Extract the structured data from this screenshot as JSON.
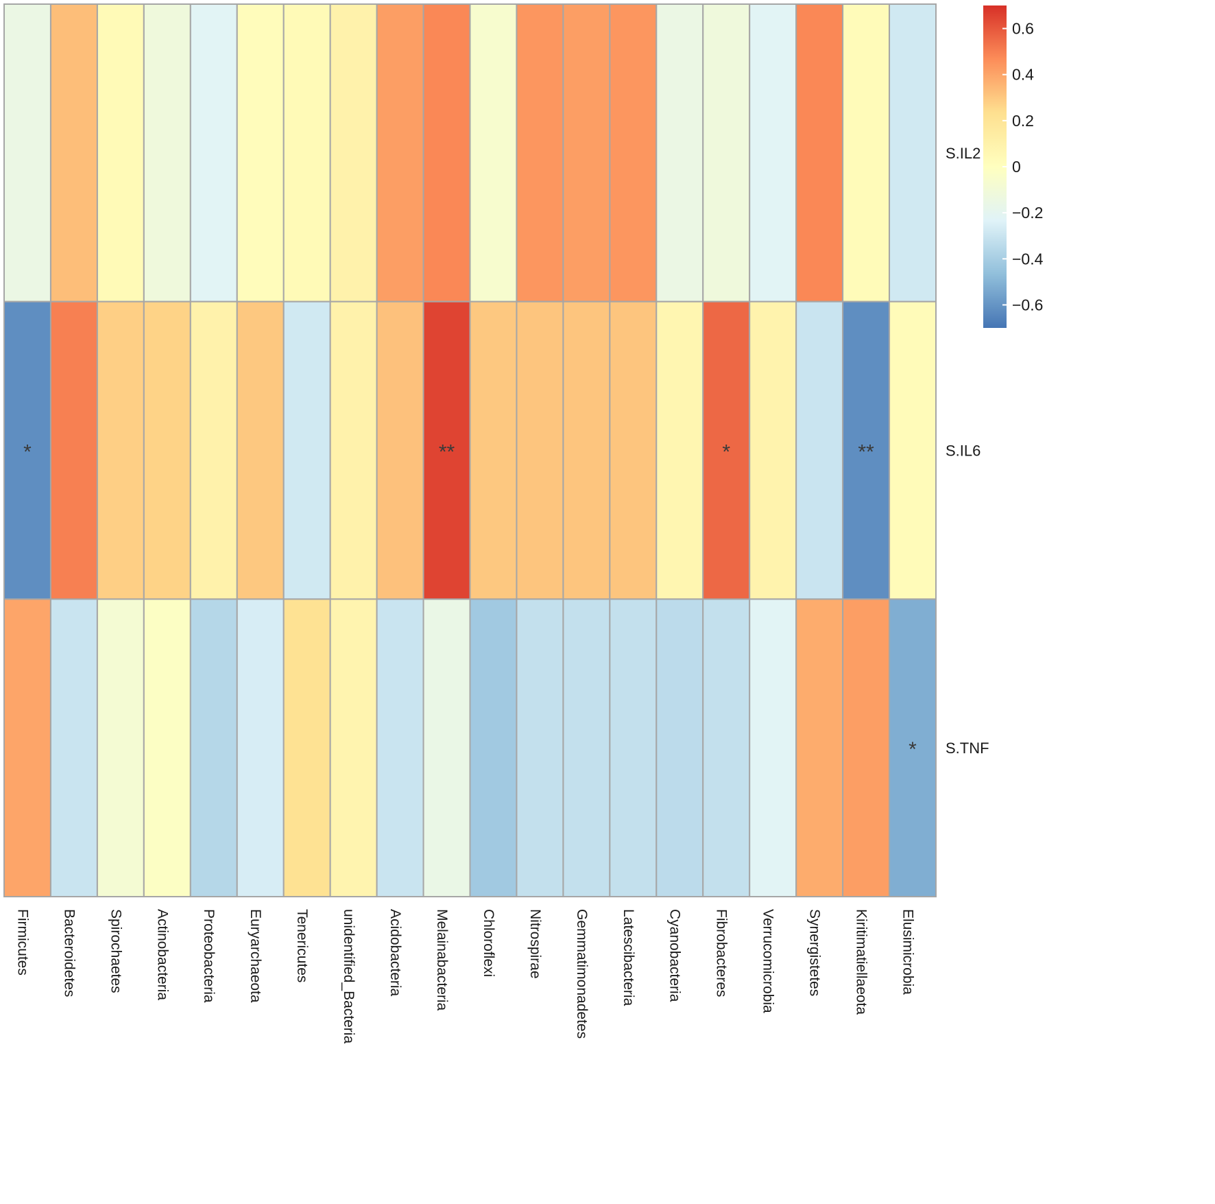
{
  "chart_data": {
    "type": "heatmap",
    "title": "",
    "columns": [
      "Firmicutes",
      "Bacteroidetes",
      "Spirochaetes",
      "Actinobacteria",
      "Proteobacteria",
      "Euryarchaeota",
      "Tenericutes",
      "unidentified_Bacteria",
      "Acidobacteria",
      "Melainabacteria",
      "Chloroflexi",
      "Nitrospirae",
      "Gemmatimonadetes",
      "Latescibacteria",
      "Cyanobacteria",
      "Fibrobacteres",
      "Verrucomicrobia",
      "Synergistetes",
      "Kiritimatiellaeota",
      "Elusimicrobia"
    ],
    "rows": [
      "S.IL2",
      "S.IL6",
      "S.TNF"
    ],
    "values": [
      [
        -0.15,
        0.33,
        0.04,
        -0.12,
        -0.22,
        0.02,
        0.04,
        0.1,
        0.42,
        0.48,
        -0.06,
        0.44,
        0.42,
        0.44,
        -0.15,
        -0.12,
        -0.22,
        0.48,
        0.03,
        -0.28
      ],
      [
        -0.62,
        0.5,
        0.28,
        0.27,
        0.1,
        0.3,
        -0.28,
        0.1,
        0.32,
        0.65,
        0.3,
        0.31,
        0.31,
        0.31,
        0.07,
        0.56,
        0.09,
        -0.3,
        -0.62,
        0.03
      ],
      [
        0.4,
        -0.3,
        -0.08,
        -0.02,
        -0.36,
        -0.26,
        0.22,
        0.08,
        -0.3,
        -0.16,
        -0.42,
        -0.32,
        -0.32,
        -0.32,
        -0.34,
        -0.32,
        -0.22,
        0.38,
        0.42,
        -0.52
      ]
    ],
    "significance": [
      [
        "",
        "",
        "",
        "",
        "",
        "",
        "",
        "",
        "",
        "",
        "",
        "",
        "",
        "",
        "",
        "",
        "",
        "",
        "",
        ""
      ],
      [
        "*",
        "",
        "",
        "",
        "",
        "",
        "",
        "",
        "",
        "**",
        "",
        "",
        "",
        "",
        "",
        "*",
        "",
        "",
        "**",
        ""
      ],
      [
        "",
        "",
        "",
        "",
        "",
        "",
        "",
        "",
        "",
        "",
        "",
        "",
        "",
        "",
        "",
        "",
        "",
        "",
        "",
        "*"
      ]
    ],
    "legend": {
      "min": -0.7,
      "max": 0.7,
      "ticks": [
        0.6,
        0.4,
        0.2,
        0,
        -0.2,
        -0.4,
        -0.6
      ],
      "tick_labels": [
        "0.6",
        "0.4",
        "0.2",
        "0",
        "−0.2",
        "−0.4",
        "−0.6"
      ],
      "colors": [
        "#4575b4",
        "#91bfdb",
        "#e0f3f8",
        "#ffffbf",
        "#fee090",
        "#fc8d59",
        "#d73027"
      ]
    }
  }
}
